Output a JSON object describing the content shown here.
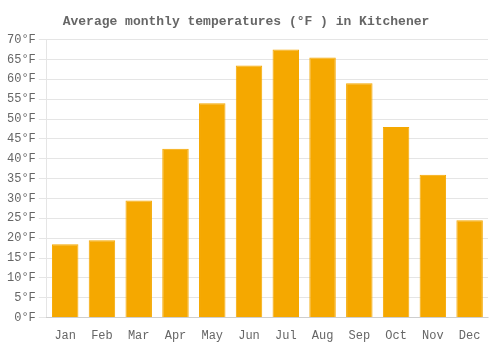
{
  "chart_data": {
    "type": "bar",
    "title": "Average monthly temperatures (°F ) in Kitchener",
    "categories": [
      "Jan",
      "Feb",
      "Mar",
      "Apr",
      "May",
      "Jun",
      "Jul",
      "Aug",
      "Sep",
      "Oct",
      "Nov",
      "Dec"
    ],
    "values": [
      18.5,
      19.5,
      29.5,
      42.5,
      54.0,
      63.5,
      67.5,
      65.5,
      59.0,
      48.0,
      36.0,
      24.5
    ],
    "color": "#F5A800",
    "ylim": [
      0,
      70
    ],
    "yticks": [
      {
        "value": 0,
        "label": "0°F"
      },
      {
        "value": 5,
        "label": "5°F"
      },
      {
        "value": 10,
        "label": "10°F"
      },
      {
        "value": 15,
        "label": "15°F"
      },
      {
        "value": 20,
        "label": "20°F"
      },
      {
        "value": 25,
        "label": "25°F"
      },
      {
        "value": 30,
        "label": "30°F"
      },
      {
        "value": 35,
        "label": "35°F"
      },
      {
        "value": 40,
        "label": "40°F"
      },
      {
        "value": 45,
        "label": "45°F"
      },
      {
        "value": 50,
        "label": "50°F"
      },
      {
        "value": 55,
        "label": "55°F"
      },
      {
        "value": 60,
        "label": "60°F"
      },
      {
        "value": 65,
        "label": "65°F"
      },
      {
        "value": 70,
        "label": "70°F"
      }
    ],
    "grid": true
  }
}
